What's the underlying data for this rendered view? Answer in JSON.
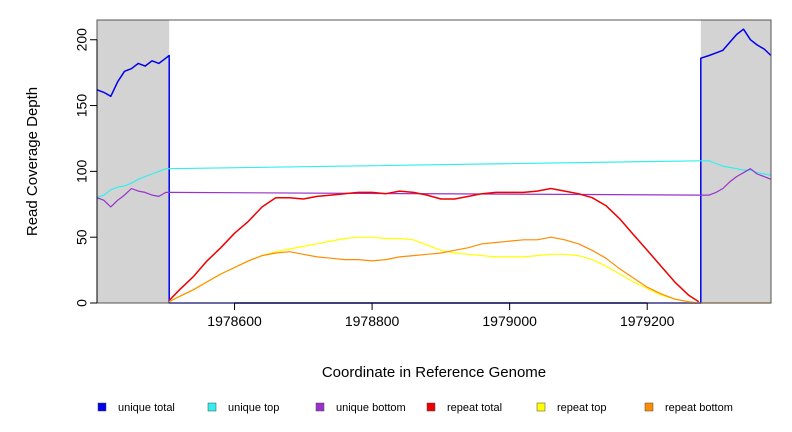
{
  "chart_data": {
    "type": "line",
    "title": "",
    "xlabel": "Coordinate in Reference Genome",
    "ylabel": "Read Coverage Depth",
    "xlim": [
      1978400,
      1979380
    ],
    "ylim": [
      0,
      215
    ],
    "x_ticks": [
      1978600,
      1978800,
      1979000,
      1979200
    ],
    "x_tick_labels": [
      "1978600",
      "1978800",
      "1979000",
      "1979200"
    ],
    "y_ticks": [
      0,
      50,
      100,
      150,
      200
    ],
    "y_tick_labels": [
      "0",
      "50",
      "100",
      "150",
      "200"
    ],
    "grid": false,
    "legend_position": "bottom",
    "shaded_regions": [
      {
        "x_start": 1978400,
        "x_end": 1978505,
        "color": "#d3d3d3"
      },
      {
        "x_start": 1979278,
        "x_end": 1979380,
        "color": "#d3d3d3"
      }
    ],
    "series": [
      {
        "name": "unique total",
        "color": "#0000ee",
        "x": [
          1978400,
          1978410,
          1978420,
          1978430,
          1978440,
          1978450,
          1978460,
          1978470,
          1978480,
          1978490,
          1978500,
          1978505,
          1978505,
          1979278,
          1979278,
          1979290,
          1979300,
          1979310,
          1979320,
          1979330,
          1979340,
          1979350,
          1979360,
          1979370,
          1979380
        ],
        "y": [
          162,
          160,
          157,
          168,
          176,
          178,
          182,
          180,
          184,
          182,
          186,
          188,
          0,
          0,
          186,
          188,
          190,
          192,
          198,
          204,
          208,
          200,
          196,
          193,
          188
        ]
      },
      {
        "name": "unique top",
        "color": "#33eeee",
        "x": [
          1978400,
          1978410,
          1978420,
          1978430,
          1978440,
          1978450,
          1978460,
          1978470,
          1978480,
          1978490,
          1978500,
          1978505,
          1979278,
          1979290,
          1979300,
          1979310,
          1979320,
          1979330,
          1979340,
          1979350,
          1979360,
          1979370,
          1979380
        ],
        "y": [
          80,
          82,
          86,
          88,
          89,
          91,
          94,
          96,
          98,
          100,
          102,
          102,
          108,
          108,
          106,
          104,
          103,
          102,
          101,
          101,
          99,
          98,
          97
        ]
      },
      {
        "name": "unique bottom",
        "color": "#9932cc",
        "x": [
          1978400,
          1978410,
          1978420,
          1978430,
          1978440,
          1978450,
          1978460,
          1978470,
          1978480,
          1978490,
          1978500,
          1978505,
          1979278,
          1979290,
          1979300,
          1979310,
          1979320,
          1979330,
          1979340,
          1979350,
          1979360,
          1979370,
          1979380
        ],
        "y": [
          80,
          78,
          73,
          78,
          82,
          87,
          85,
          84,
          82,
          81,
          84,
          84,
          82,
          82,
          84,
          87,
          92,
          96,
          99,
          102,
          98,
          96,
          94
        ]
      },
      {
        "name": "repeat total",
        "color": "#ee0000",
        "x": [
          1978505,
          1978520,
          1978540,
          1978560,
          1978580,
          1978600,
          1978620,
          1978640,
          1978660,
          1978680,
          1978700,
          1978720,
          1978740,
          1978760,
          1978780,
          1978800,
          1978820,
          1978840,
          1978860,
          1978880,
          1978900,
          1978920,
          1978940,
          1978960,
          1978980,
          1979000,
          1979020,
          1979040,
          1979060,
          1979080,
          1979100,
          1979120,
          1979140,
          1979160,
          1979180,
          1979200,
          1979220,
          1979240,
          1979260,
          1979275
        ],
        "y": [
          2,
          10,
          20,
          32,
          42,
          53,
          62,
          73,
          80,
          80,
          79,
          81,
          82,
          83,
          84,
          84,
          83,
          85,
          84,
          82,
          79,
          79,
          81,
          83,
          84,
          84,
          84,
          85,
          87,
          85,
          83,
          80,
          74,
          64,
          52,
          40,
          28,
          16,
          6,
          1
        ]
      },
      {
        "name": "repeat top",
        "color": "#ffff00",
        "x": [
          1978505,
          1978520,
          1978540,
          1978560,
          1978580,
          1978600,
          1978620,
          1978640,
          1978660,
          1978680,
          1978700,
          1978720,
          1978740,
          1978760,
          1978780,
          1978800,
          1978820,
          1978840,
          1978860,
          1978880,
          1978900,
          1978920,
          1978940,
          1978960,
          1978980,
          1979000,
          1979020,
          1979040,
          1979060,
          1979080,
          1979100,
          1979120,
          1979140,
          1979160,
          1979180,
          1979200,
          1979220,
          1979240,
          1979260,
          1979275
        ],
        "y": [
          1,
          5,
          10,
          16,
          22,
          27,
          32,
          36,
          39,
          41,
          43,
          45,
          47,
          49,
          50,
          50,
          49,
          49,
          48,
          44,
          40,
          38,
          37,
          36,
          35,
          35,
          35,
          36,
          37,
          37,
          36,
          33,
          28,
          22,
          16,
          11,
          6,
          3,
          1,
          0
        ]
      },
      {
        "name": "repeat bottom",
        "color": "#ff8c00",
        "x": [
          1978505,
          1978520,
          1978540,
          1978560,
          1978580,
          1978600,
          1978620,
          1978640,
          1978660,
          1978680,
          1978700,
          1978720,
          1978740,
          1978760,
          1978780,
          1978800,
          1978820,
          1978840,
          1978860,
          1978880,
          1978900,
          1978920,
          1978940,
          1978960,
          1978980,
          1979000,
          1979020,
          1979040,
          1979060,
          1979080,
          1979100,
          1979120,
          1979140,
          1979160,
          1979180,
          1979200,
          1979220,
          1979240,
          1979260,
          1979275,
          1979380
        ],
        "y": [
          1,
          5,
          10,
          16,
          22,
          27,
          32,
          36,
          38,
          39,
          37,
          35,
          34,
          33,
          33,
          32,
          33,
          35,
          36,
          37,
          38,
          40,
          42,
          45,
          46,
          47,
          48,
          48,
          50,
          48,
          45,
          40,
          34,
          26,
          19,
          12,
          7,
          3,
          1,
          0,
          0
        ]
      }
    ]
  }
}
